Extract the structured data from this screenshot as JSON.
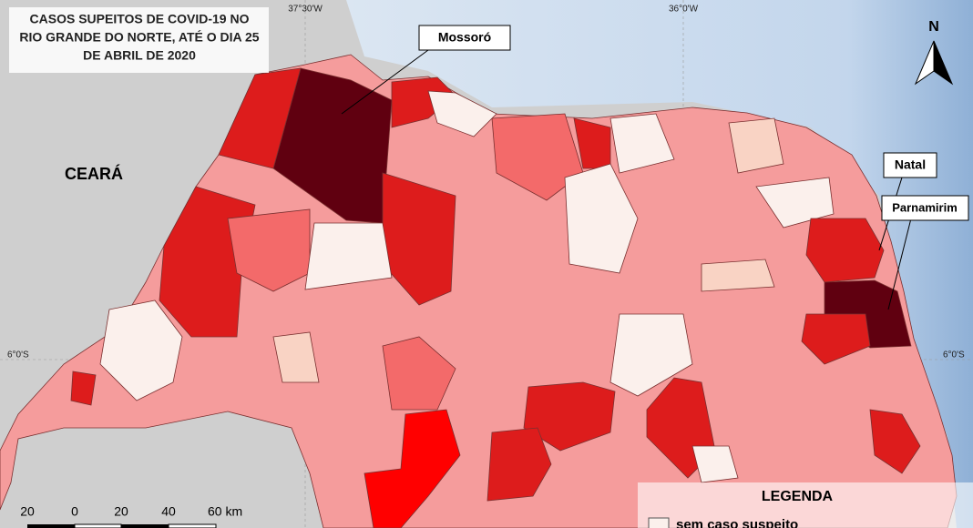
{
  "title": [
    "CASOS SUPEITOS DE COVID-19 NO",
    "RIO GRANDE DO NORTE, ATÉ O DIA 25",
    "DE ABRIL DE 2020"
  ],
  "coordinates": {
    "lon_left": "37°30'W",
    "lon_right": "36°0'W",
    "lat_left": "6°0'S",
    "lat_right": "6°0'S"
  },
  "labels": {
    "state": "CEARÁ",
    "city_1": "Mossoró",
    "city_2": "Natal",
    "city_3": "Parnamirim"
  },
  "north": "N",
  "scale_bar": [
    "20",
    "0",
    "20",
    "40",
    "60 km"
  ],
  "legend": {
    "title": "LEGENDA",
    "items": [
      "sem caso suspeito"
    ]
  }
}
